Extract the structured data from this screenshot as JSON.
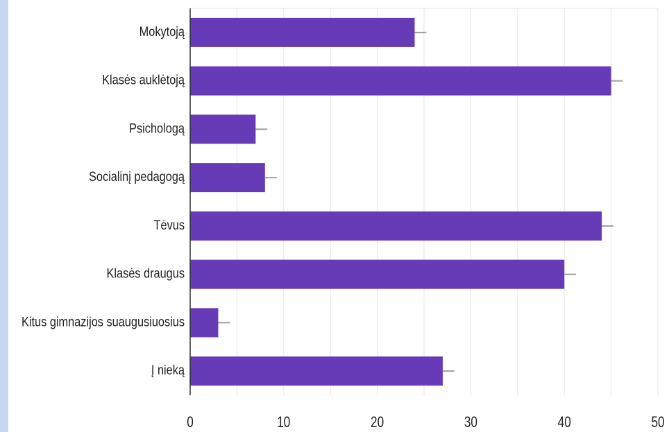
{
  "chart_data": {
    "type": "bar",
    "orientation": "horizontal",
    "categories": [
      "Mokytoją",
      "Klasės auklėtoją",
      "Psichologą",
      "Socialinį pedagogą",
      "Tėvus",
      "Klasės draugus",
      "Kitus gimnazijos suaugusiuosius",
      "Į nieką"
    ],
    "values": [
      24,
      45,
      7,
      8,
      44,
      40,
      3,
      27
    ],
    "xlim": [
      0,
      50
    ],
    "xticks": [
      0,
      10,
      20,
      30,
      40,
      50
    ],
    "grid": true,
    "error_bars": true,
    "colors": {
      "bar": "#673ab7",
      "grid": "#e6e6e6",
      "axis": "#333333",
      "error_bar": "#9e9e9e",
      "text": "#222222",
      "left_strip": "#c9d7f0"
    }
  }
}
